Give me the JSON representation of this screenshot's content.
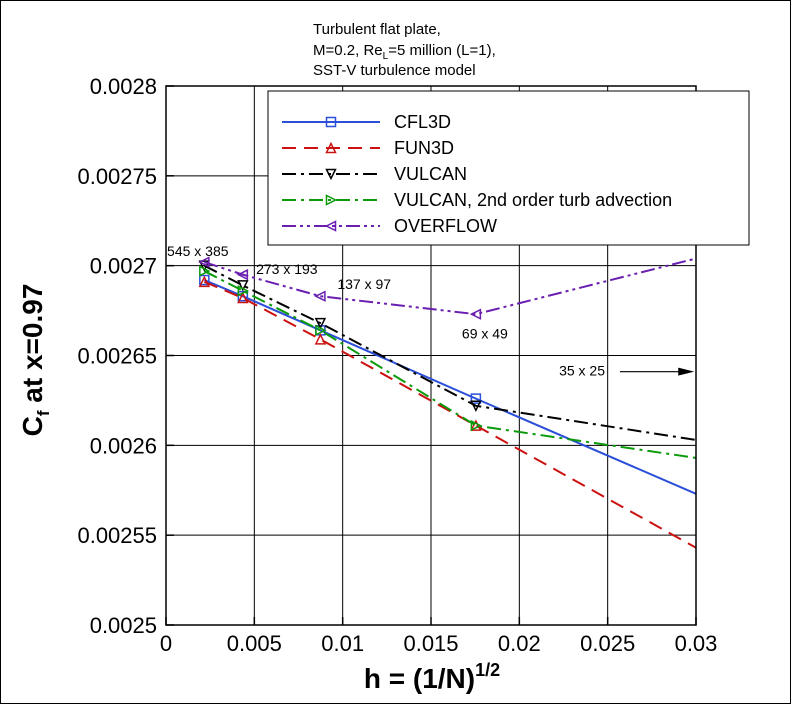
{
  "chart_data": {
    "type": "line",
    "title": [
      "Turbulent flat plate,",
      "M=0.2, Re_L=5 million (L=1),",
      "SST-V turbulence model"
    ],
    "xlabel": "h = (1/N)^1/2",
    "ylabel": "C_f at x=0.97",
    "xlim": [
      0,
      0.03
    ],
    "ylim": [
      0.0025,
      0.0028
    ],
    "xticks": [
      "0",
      "0.005",
      "0.01",
      "0.015",
      "0.02",
      "0.025",
      "0.03"
    ],
    "yticks": [
      "0.0025",
      "0.00255",
      "0.0026",
      "0.00265",
      "0.0027",
      "0.00275",
      "0.0028"
    ],
    "grid": true,
    "legend_position": "top-right",
    "series": [
      {
        "name": "CFL3D",
        "color": "#2b4fd8",
        "dash": "solid",
        "marker": "square",
        "x": [
          0.00217,
          0.00435,
          0.00874,
          0.01754,
          0.03
        ],
        "y": [
          0.002692,
          0.002683,
          0.002664,
          0.002626,
          0.002573
        ],
        "marked": [
          true,
          true,
          true,
          true,
          false
        ]
      },
      {
        "name": "FUN3D",
        "color": "#cc1111",
        "dash": "dash",
        "marker": "triangle-up",
        "x": [
          0.00217,
          0.00435,
          0.00874,
          0.01754,
          0.03
        ],
        "y": [
          0.002691,
          0.002682,
          0.002659,
          0.002611,
          0.002543
        ],
        "marked": [
          true,
          true,
          true,
          true,
          false
        ]
      },
      {
        "name": "VULCAN",
        "color": "#000000",
        "dash": "dashdot",
        "marker": "triangle-down",
        "x": [
          0.00217,
          0.00435,
          0.00874,
          0.01754,
          0.03
        ],
        "y": [
          0.0027,
          0.002689,
          0.002668,
          0.002622,
          0.002603
        ],
        "marked": [
          true,
          true,
          true,
          true,
          false
        ]
      },
      {
        "name": "VULCAN, 2nd order turb advection",
        "color": "#0a9a0a",
        "dash": "dashdot",
        "marker": "triangle-right",
        "x": [
          0.00217,
          0.00435,
          0.00874,
          0.01754,
          0.03
        ],
        "y": [
          0.002697,
          0.002686,
          0.002664,
          0.002611,
          0.002593
        ],
        "marked": [
          true,
          true,
          true,
          true,
          false
        ]
      },
      {
        "name": "OVERFLOW",
        "color": "#6a1fb0",
        "dash": "dashdotdot",
        "marker": "triangle-left",
        "x": [
          0.00217,
          0.00435,
          0.00874,
          0.01754,
          0.03
        ],
        "y": [
          0.002702,
          0.002695,
          0.002683,
          0.002673,
          0.002704
        ],
        "marked": [
          true,
          true,
          true,
          true,
          false
        ]
      }
    ],
    "annotations": [
      {
        "text": "545 x 385",
        "x": 6e-05,
        "y": 0.0027055
      },
      {
        "text": "273 x 193",
        "x": 0.0051,
        "y": 0.0026955
      },
      {
        "text": "137 x 97",
        "x": 0.0097,
        "y": 0.002687
      },
      {
        "text": "69 x 49",
        "x": 0.01675,
        "y": 0.0026595
      },
      {
        "text": "35 x 25",
        "x": 0.02225,
        "y": 0.002639
      }
    ],
    "arrow": {
      "from_x": 0.0257,
      "to_x": 0.0299,
      "y": 0.002641
    }
  }
}
